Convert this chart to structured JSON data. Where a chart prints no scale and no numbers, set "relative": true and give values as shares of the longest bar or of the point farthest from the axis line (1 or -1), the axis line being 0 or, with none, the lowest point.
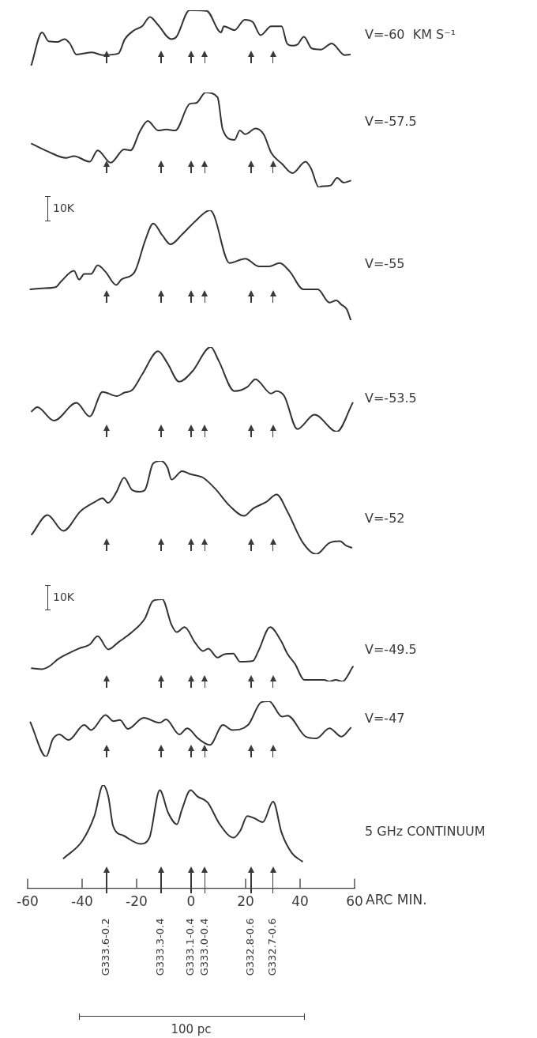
{
  "chart_data": [
    {
      "type": "line",
      "color": "#333333",
      "relative": true,
      "xlim": [
        -60,
        60
      ],
      "tick_labels": false,
      "x": [
        -58.7,
        -54.7,
        -52.3,
        -48.9,
        -46.5,
        -44.5,
        -42.1,
        -36.3,
        -32.5,
        -26.7,
        -24.3,
        -20.9,
        -18,
        -15.1,
        -12.2,
        -7.3,
        -5.4,
        -0.6,
        5.7,
        11,
        12,
        13.4,
        15.9,
        19.7,
        22.6,
        25.5,
        29.4,
        33.2,
        35.2,
        37.1,
        39,
        41.4,
        44.3,
        47.7,
        51.6,
        56.4,
        58.3
      ],
      "values": [
        0,
        0.6,
        0.44,
        0.43,
        0.48,
        0.4,
        0.2,
        0.24,
        0.19,
        0.22,
        0.48,
        0.64,
        0.71,
        0.88,
        0.74,
        0.48,
        0.52,
        1,
        0.99,
        0.6,
        0.71,
        0.69,
        0.64,
        0.83,
        0.79,
        0.55,
        0.71,
        0.71,
        0.4,
        0.36,
        0.38,
        0.52,
        0.31,
        0.29,
        0.4,
        0.19,
        0.2
      ],
      "annotations": [
        "V=-60  KM S⁻¹"
      ]
    },
    {
      "type": "line",
      "color": "#333333",
      "relative": true,
      "xlim": [
        -60,
        60
      ],
      "tick_labels": false,
      "x": [
        -58.5,
        -52.7,
        -45.9,
        -43,
        -37.2,
        -34.3,
        -29.5,
        -24.6,
        -22.2,
        -18.8,
        -15.9,
        -12.1,
        -9.2,
        -5.8,
        -0.5,
        1.9,
        5.3,
        9.7,
        11.6,
        15.9,
        17.9,
        19.8,
        23.7,
        26.6,
        29.5,
        33.3,
        37.2,
        42,
        44,
        46.9,
        47.8,
        51.2,
        53.6,
        56,
        58.5
      ],
      "values": [
        0.46,
        0.38,
        0.31,
        0.33,
        0.27,
        0.39,
        0.26,
        0.4,
        0.39,
        0.59,
        0.7,
        0.6,
        0.61,
        0.6,
        0.88,
        0.89,
        1,
        0.95,
        0.61,
        0.5,
        0.6,
        0.56,
        0.62,
        0.56,
        0.36,
        0.25,
        0.15,
        0.27,
        0.2,
        0,
        0.01,
        0.02,
        0.1,
        0.05,
        0.07
      ],
      "annotations": [
        "V=-57.5"
      ]
    },
    {
      "type": "line",
      "color": "#333333",
      "relative": true,
      "xlim": [
        -60,
        60
      ],
      "tick_labels": false,
      "x": [
        -59,
        -54.7,
        -49.8,
        -47.8,
        -43,
        -41.1,
        -39.2,
        -36.7,
        -34.3,
        -31.4,
        -27.5,
        -25.6,
        -20.7,
        -16.8,
        -13.9,
        -10.5,
        -7.6,
        -3.3,
        1.5,
        6.9,
        8.3,
        14.1,
        19.9,
        24.8,
        28.6,
        32.5,
        36.3,
        41.2,
        46.5,
        50.8,
        53.3,
        55.2,
        57.1,
        58.6
      ],
      "values": [
        0.28,
        0.29,
        0.3,
        0.35,
        0.45,
        0.37,
        0.42,
        0.42,
        0.5,
        0.44,
        0.32,
        0.37,
        0.44,
        0.73,
        0.88,
        0.77,
        0.69,
        0.78,
        0.9,
        1,
        0.96,
        0.52,
        0.56,
        0.49,
        0.49,
        0.52,
        0.44,
        0.28,
        0.28,
        0.16,
        0.18,
        0.14,
        0.1,
        0
      ],
      "annotations": [
        "V=-55",
        "10K"
      ]
    },
    {
      "type": "line",
      "color": "#333333",
      "relative": true,
      "xlim": [
        -60,
        60
      ],
      "tick_labels": false,
      "x": [
        -58.5,
        -56.5,
        -50.3,
        -42.1,
        -37.2,
        -32.5,
        -27.2,
        -24.6,
        -21.7,
        -17.9,
        -12.1,
        -8.7,
        -4.4,
        0.4,
        7.2,
        10.1,
        15.9,
        20.7,
        23.6,
        29.4,
        31.3,
        34.2,
        39,
        45.3,
        53.5,
        59.3
      ],
      "values": [
        0.24,
        0.29,
        0.13,
        0.34,
        0.18,
        0.47,
        0.42,
        0.46,
        0.49,
        0.68,
        0.95,
        0.81,
        0.59,
        0.71,
        1,
        0.84,
        0.48,
        0.53,
        0.62,
        0.45,
        0.48,
        0.42,
        0.03,
        0.2,
        0,
        0.34
      ],
      "annotations": [
        "V=-53.5"
      ]
    },
    {
      "type": "line",
      "color": "#333333",
      "relative": true,
      "xlim": [
        -60,
        60
      ],
      "tick_labels": false,
      "x": [
        -58.5,
        -52.7,
        -46.9,
        -40.6,
        -35.3,
        -32.5,
        -30.5,
        -27.5,
        -24.6,
        -21.7,
        -18.8,
        -16.9,
        -14,
        -11.1,
        -8.7,
        -7.2,
        -3.3,
        -0.5,
        4.4,
        9.2,
        14.1,
        19.4,
        22.8,
        27.6,
        31.4,
        35.3,
        41.1,
        45.9,
        50.7,
        54.6,
        57,
        58.9
      ],
      "values": [
        0.21,
        0.42,
        0.25,
        0.46,
        0.56,
        0.6,
        0.55,
        0.66,
        0.82,
        0.69,
        0.67,
        0.69,
        0.97,
        1,
        0.93,
        0.8,
        0.89,
        0.86,
        0.82,
        0.69,
        0.52,
        0.41,
        0.49,
        0.56,
        0.64,
        0.46,
        0.12,
        0,
        0.12,
        0.14,
        0.09,
        0.07
      ],
      "annotations": [
        "V=-52"
      ]
    },
    {
      "type": "line",
      "color": "#333333",
      "relative": true,
      "xlim": [
        -60,
        60
      ],
      "tick_labels": false,
      "x": [
        -58.5,
        -54.7,
        -51.8,
        -48.9,
        -44.5,
        -41.2,
        -37.2,
        -34.3,
        -30.4,
        -26.6,
        -21.7,
        -16.9,
        -14,
        -10.6,
        -7.2,
        -5.3,
        -2.4,
        1.5,
        4.4,
        6.3,
        9.7,
        12.1,
        15.5,
        17.9,
        22.7,
        24.7,
        29,
        32.9,
        35.3,
        38.2,
        41.5,
        48.8,
        50.7,
        53.1,
        55.5,
        59.4
      ],
      "values": [
        0.16,
        0.15,
        0.19,
        0.27,
        0.35,
        0.4,
        0.45,
        0.55,
        0.39,
        0.48,
        0.6,
        0.77,
        0.98,
        1,
        0.69,
        0.6,
        0.66,
        0.47,
        0.37,
        0.4,
        0.29,
        0.33,
        0.34,
        0.24,
        0.25,
        0.37,
        0.66,
        0.5,
        0.34,
        0.21,
        0.02,
        0.02,
        0,
        0.02,
        0,
        0.18
      ],
      "annotations": [
        "V=-49.5",
        "10K"
      ]
    },
    {
      "type": "line",
      "color": "#333333",
      "relative": true,
      "xlim": [
        -60,
        60
      ],
      "tick_labels": false,
      "x": [
        -59,
        -53.2,
        -50.8,
        -48.4,
        -45,
        -39.2,
        -36.7,
        -31.4,
        -28.5,
        -26.1,
        -23.2,
        -17.4,
        -11.6,
        -9.2,
        -4.3,
        -1.4,
        2.5,
        6.9,
        11.7,
        15.1,
        20.9,
        25.7,
        28.6,
        33.4,
        35.4,
        42.1,
        46,
        50.8,
        55.2,
        58.6
      ],
      "values": [
        0.62,
        0,
        0.31,
        0.4,
        0.3,
        0.57,
        0.48,
        0.75,
        0.64,
        0.66,
        0.5,
        0.7,
        0.61,
        0.67,
        0.4,
        0.51,
        0.33,
        0.21,
        0.57,
        0.48,
        0.57,
        0.98,
        1,
        0.72,
        0.74,
        0.36,
        0.33,
        0.51,
        0.36,
        0.52
      ],
      "annotations": [
        "V=-47"
      ]
    },
    {
      "type": "line",
      "color": "#333333",
      "relative": true,
      "xlim": [
        -60,
        60
      ],
      "xticks": [
        -60,
        -40,
        -20,
        0,
        20,
        40,
        60
      ],
      "xlabel": "ARC MIN.",
      "x": [
        -46.8,
        -39.9,
        -35.5,
        -32.3,
        -30.4,
        -28.6,
        -24.8,
        -18.5,
        -15.3,
        -11.5,
        -8.4,
        -5.2,
        -3.4,
        -0.2,
        2.3,
        6.1,
        10.5,
        15.6,
        18.1,
        20.6,
        23.1,
        26.3,
        30.1,
        33.2,
        37,
        40.8
      ],
      "values": [
        0.29,
        0.46,
        0.7,
        1,
        0.89,
        0.6,
        0.51,
        0.43,
        0.49,
        0.95,
        0.73,
        0.62,
        0.76,
        0.95,
        0.89,
        0.83,
        0.62,
        0.49,
        0.56,
        0.7,
        0.68,
        0.64,
        0.84,
        0.54,
        0.34,
        0.26
      ],
      "annotations": [
        "5 GHz CONTINUUM",
        "100 pc",
        "G333.6-0.2",
        "G333.3-0.4",
        "G333.1-0.4",
        "G333.0-0.4",
        "G332.8-0.6",
        "G332.7-0.6"
      ]
    }
  ]
}
